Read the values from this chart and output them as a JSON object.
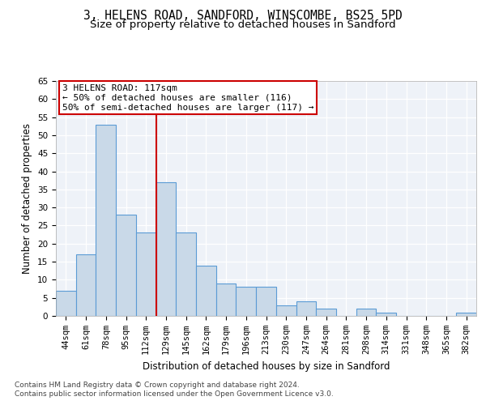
{
  "title_line1": "3, HELENS ROAD, SANDFORD, WINSCOMBE, BS25 5PD",
  "title_line2": "Size of property relative to detached houses in Sandford",
  "xlabel": "Distribution of detached houses by size in Sandford",
  "ylabel": "Number of detached properties",
  "categories": [
    "44sqm",
    "61sqm",
    "78sqm",
    "95sqm",
    "112sqm",
    "129sqm",
    "145sqm",
    "162sqm",
    "179sqm",
    "196sqm",
    "213sqm",
    "230sqm",
    "247sqm",
    "264sqm",
    "281sqm",
    "298sqm",
    "314sqm",
    "331sqm",
    "348sqm",
    "365sqm",
    "382sqm"
  ],
  "values": [
    7,
    17,
    53,
    28,
    23,
    37,
    23,
    14,
    9,
    8,
    8,
    3,
    4,
    2,
    0,
    2,
    1,
    0,
    0,
    0,
    1
  ],
  "bar_color": "#c9d9e8",
  "bar_edge_color": "#5b9bd5",
  "background_color": "#eef2f8",
  "annotation_text": "3 HELENS ROAD: 117sqm\n← 50% of detached houses are smaller (116)\n50% of semi-detached houses are larger (117) →",
  "annotation_box_color": "#ffffff",
  "annotation_box_edge_color": "#cc0000",
  "vline_x": 4.5,
  "vline_color": "#cc0000",
  "ylim": [
    0,
    65
  ],
  "yticks": [
    0,
    5,
    10,
    15,
    20,
    25,
    30,
    35,
    40,
    45,
    50,
    55,
    60,
    65
  ],
  "footer_line1": "Contains HM Land Registry data © Crown copyright and database right 2024.",
  "footer_line2": "Contains public sector information licensed under the Open Government Licence v3.0.",
  "title_fontsize": 10.5,
  "subtitle_fontsize": 9.5,
  "axis_label_fontsize": 8.5,
  "tick_fontsize": 7.5,
  "annotation_fontsize": 8,
  "footer_fontsize": 6.5
}
